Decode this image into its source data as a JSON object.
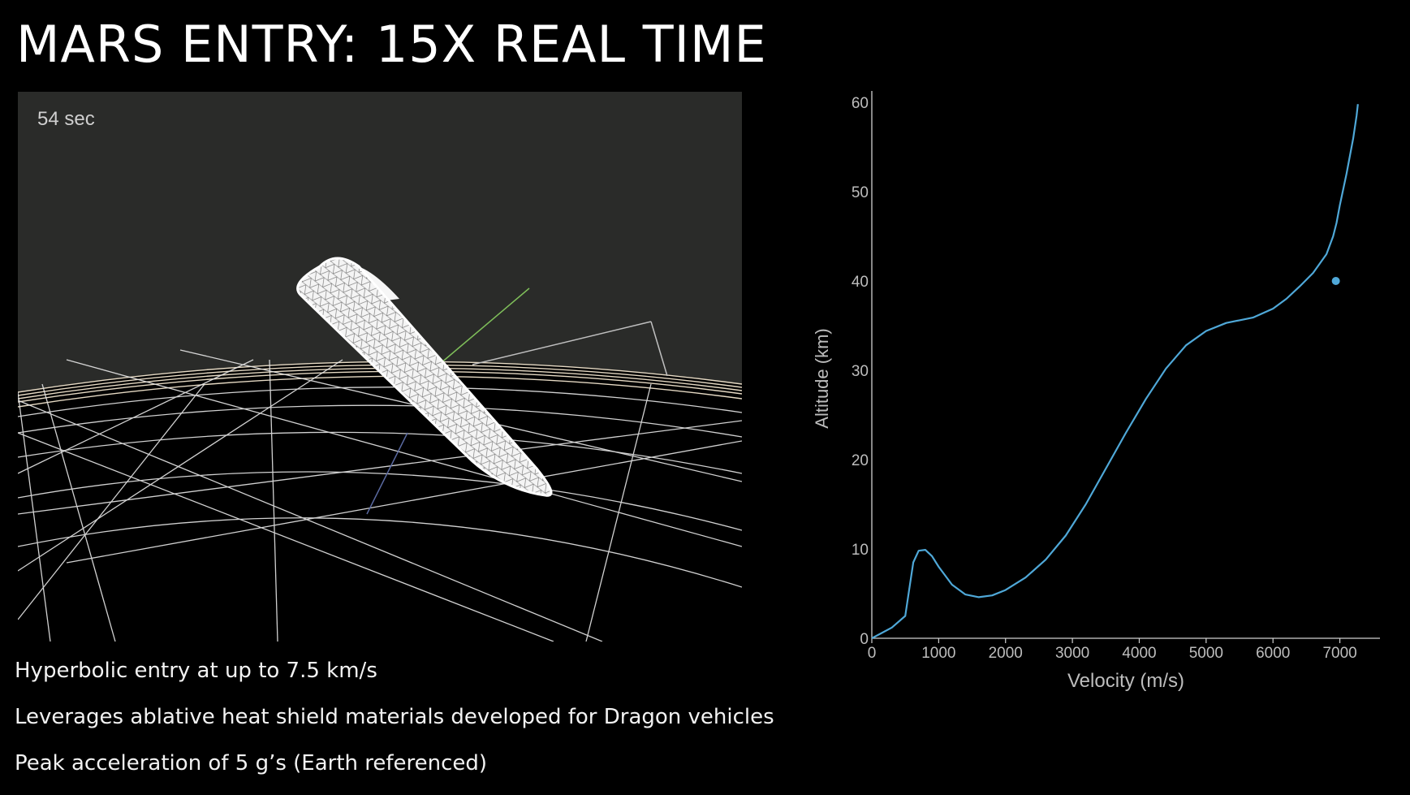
{
  "slide": {
    "title": "MARS ENTRY: 15X REAL TIME"
  },
  "simulation": {
    "timer": "54 sec",
    "sky_color": "#2a2b29",
    "ground_color": "#000000",
    "mesh_color": "#ffffff"
  },
  "bullets": [
    "Hyperbolic entry at up to 7.5 km/s",
    "Leverages ablative heat shield materials developed for Dragon vehicles",
    "Peak acceleration of 5 g’s (Earth referenced)"
  ],
  "chart_data": {
    "type": "line",
    "title": "",
    "xlabel": "Velocity (m/s)",
    "ylabel": "Altitude (km)",
    "xlim": [
      0,
      7600
    ],
    "ylim": [
      0,
      60
    ],
    "xticks": [
      0,
      1000,
      2000,
      3000,
      4000,
      5000,
      6000,
      7000
    ],
    "yticks": [
      0,
      10,
      20,
      30,
      40,
      50,
      60
    ],
    "grid": false,
    "line_color": "#4fa8d8",
    "series": [
      {
        "x": [
          0,
          300,
          500,
          550,
          620,
          700,
          800,
          900,
          1000,
          1200,
          1400,
          1600,
          1800,
          2000,
          2300,
          2600,
          2900,
          3200,
          3500,
          3800,
          4100,
          4400,
          4700,
          5000,
          5300,
          5500,
          5700,
          6000,
          6200,
          6400,
          6600,
          6800,
          6900,
          6950,
          7000,
          7100,
          7200,
          7250,
          7270
        ],
        "y": [
          0,
          1.2,
          2.5,
          5,
          8.5,
          9.8,
          9.9,
          9.2,
          8.0,
          6.0,
          4.9,
          4.6,
          4.8,
          5.4,
          6.8,
          8.8,
          11.5,
          15,
          19,
          23,
          26.8,
          30.2,
          32.8,
          34.4,
          35.3,
          35.6,
          35.9,
          36.9,
          38.0,
          39.4,
          40.9,
          43.0,
          45,
          46.5,
          48.5,
          52,
          56,
          58.5,
          59.8
        ]
      }
    ],
    "marker": {
      "x": 6940,
      "y": 40
    }
  }
}
